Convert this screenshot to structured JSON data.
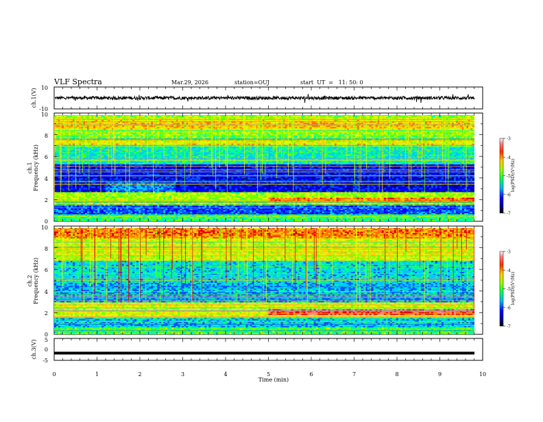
{
  "header": {
    "title": "VLF Spectra",
    "date": "Mar.29, 2026",
    "station": "station=OUJ",
    "start_ut": "start  UT  =   11: 50: 0"
  },
  "chart_data": [
    {
      "id": "ch1-waveform",
      "type": "line",
      "ylabel": "ch.1(V)",
      "ylim": [
        -10,
        10
      ],
      "yticks": [
        "10",
        "-10"
      ],
      "xlim": [
        0,
        10
      ],
      "series": [
        {
          "values_description_note": "",
          "mean": 0,
          "amplitude": 1.5
        }
      ]
    },
    {
      "id": "ch1-spectrogram",
      "type": "heatmap",
      "ylabel": "ch.1\nFrequency (kHz)",
      "ylim": [
        0,
        10
      ],
      "yticks": [
        "0",
        "2",
        "4",
        "6",
        "8",
        "10"
      ],
      "xlim": [
        0,
        10
      ],
      "colorbar": {
        "label": "log(PSD)(V²/Hz)",
        "ticks": [
          "-3",
          "-4",
          "-5",
          "-6",
          "-7"
        ],
        "range": [
          -7,
          -3
        ]
      }
    },
    {
      "id": "ch2-spectrogram",
      "type": "heatmap",
      "ylabel": "ch.2\nFrequency (kHz)",
      "ylim": [
        0,
        10
      ],
      "yticks": [
        "0",
        "2",
        "4",
        "6",
        "8",
        "10"
      ],
      "xlim": [
        0,
        10
      ],
      "colorbar": {
        "label": "log(PSD)(V²/Hz)",
        "ticks": [
          "-3",
          "-4",
          "-5",
          "-6",
          "-7"
        ],
        "range": [
          -7,
          -3
        ]
      }
    },
    {
      "id": "ch3-waveform",
      "type": "line",
      "ylabel": "ch.3(V)",
      "ylim": [
        -5,
        5
      ],
      "yticks": [
        "5",
        "0",
        "-5"
      ],
      "xlim": [
        0,
        10
      ],
      "series": [
        {
          "mean": -1.7,
          "amplitude": 0.2
        }
      ]
    }
  ],
  "xaxis": {
    "label": "Time (min)",
    "ticks": [
      "0",
      "1",
      "2",
      "3",
      "4",
      "5",
      "6",
      "7",
      "8",
      "9",
      "10"
    ]
  },
  "colors": {
    "colormap": [
      "#00008b",
      "#0000ff",
      "#0050ff",
      "#00c8ff",
      "#00ff90",
      "#70ff00",
      "#d8ff00",
      "#ffd000",
      "#ff7000",
      "#e00000",
      "#ff8080",
      "#ffffff"
    ]
  }
}
